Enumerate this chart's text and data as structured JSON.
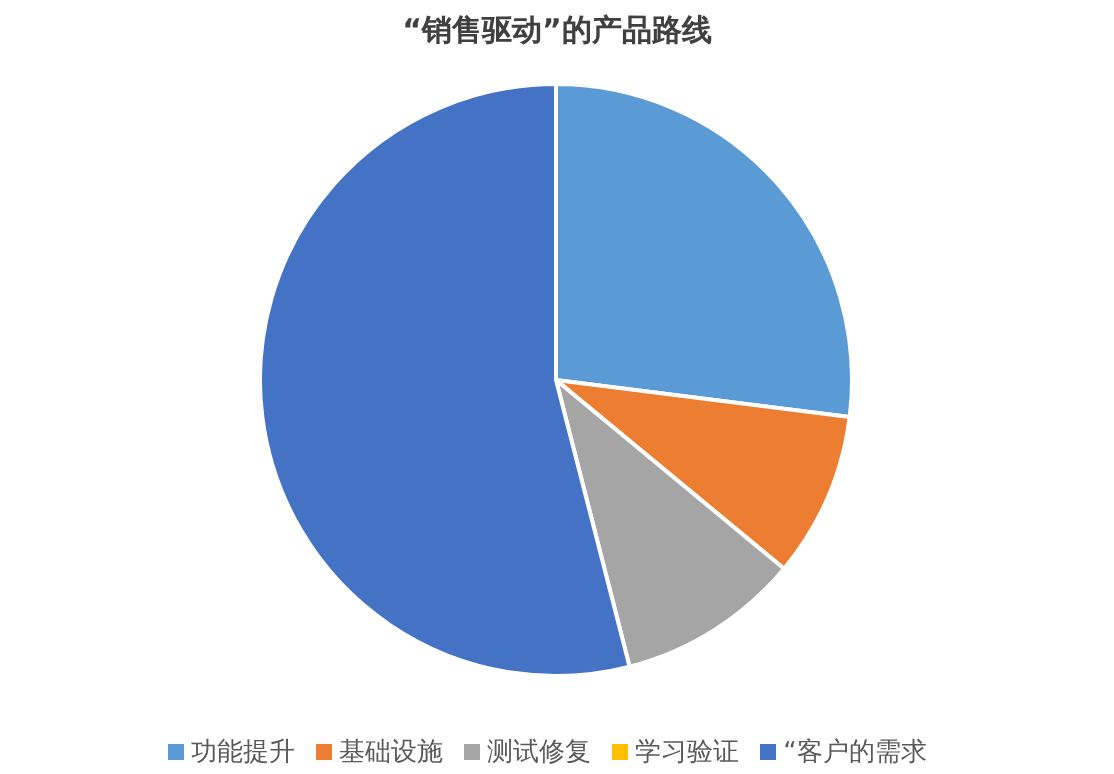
{
  "chart_data": {
    "type": "pie",
    "title": "“销售驱动”的产品路线",
    "categories": [
      "功能提升",
      "基础设施",
      "测试修复",
      "学习验证",
      "“客户的需求"
    ],
    "values": [
      27,
      9,
      10,
      0,
      54
    ],
    "colors": [
      "#5b9bd5",
      "#ed7d31",
      "#a5a5a5",
      "#ffc000",
      "#4472c4"
    ],
    "legend": "bottom"
  }
}
